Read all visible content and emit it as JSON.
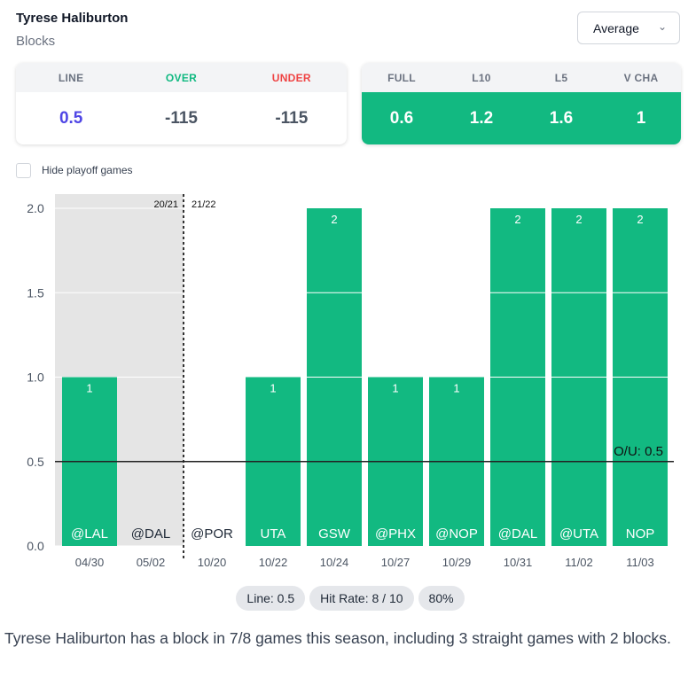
{
  "header": {
    "player": "Tyrese Haliburton",
    "stat": "Blocks",
    "select_value": "Average"
  },
  "odds": {
    "headers": [
      "LINE",
      "OVER",
      "UNDER"
    ],
    "values": [
      "0.5",
      "-115",
      "-115"
    ]
  },
  "averages": {
    "headers": [
      "FULL",
      "L10",
      "L5",
      "V CHA"
    ],
    "values": [
      "0.6",
      "1.2",
      "1.6",
      "1"
    ]
  },
  "colors": {
    "green": "#12b981",
    "line": "#4f46e5",
    "over": "#10b981",
    "under": "#ef4444"
  },
  "filter": {
    "hide_playoff_label": "Hide playoff games",
    "checked": false
  },
  "chart_data": {
    "type": "bar",
    "categories": [
      "04/30",
      "05/02",
      "10/20",
      "10/22",
      "10/24",
      "10/27",
      "10/29",
      "10/31",
      "11/02",
      "11/03"
    ],
    "opponents": [
      "@LAL",
      "@DAL",
      "@POR",
      "UTA",
      "GSW",
      "@PHX",
      "@NOP",
      "@DAL",
      "@UTA",
      "NOP"
    ],
    "values": [
      1,
      0,
      0,
      1,
      2,
      1,
      1,
      2,
      2,
      2
    ],
    "playoff": [
      true,
      true,
      false,
      false,
      false,
      false,
      false,
      false,
      false,
      false
    ],
    "season_labels": [
      "20/21",
      "21/22"
    ],
    "yticks": [
      "0.0",
      "0.5",
      "1.0",
      "1.5",
      "2.0"
    ],
    "ylim": [
      0,
      2
    ],
    "line": 0.5,
    "line_label": "O/U: 0.5"
  },
  "summary": {
    "line": "Line: 0.5",
    "hit_rate": "Hit Rate: 8 / 10",
    "pct": "80%"
  },
  "description": "Tyrese Haliburton has a block in 7/8 games this season, including 3 straight games with 2 blocks."
}
